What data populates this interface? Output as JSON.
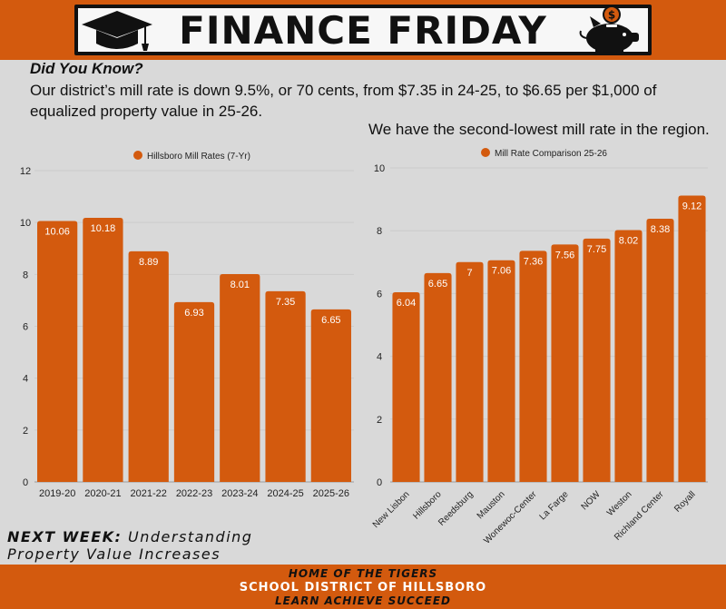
{
  "header": {
    "title": "FINANCE FRIDAY",
    "left_icon": "graduation-cap-icon",
    "right_icon": "piggy-bank-icon",
    "accent_color": "#d35a0e"
  },
  "intro": {
    "heading": "Did You Know?",
    "fact": "Our district’s mill rate is down 9.5%, or 70 cents, from $7.35 in 24-25, to $6.65 per $1,000 of equalized property value in 25-26.",
    "region_note": "We have the second-lowest mill rate in the region."
  },
  "chart_data": [
    {
      "type": "bar",
      "title": "Hillsboro Mill Rates (7-Yr)",
      "legend": "top-center",
      "grid": true,
      "ylim": [
        0,
        12
      ],
      "yticks": [
        0,
        2,
        4,
        6,
        8,
        10,
        12
      ],
      "categories": [
        "2019-20",
        "2020-21",
        "2021-22",
        "2022-23",
        "2023-24",
        "2024-25",
        "2025-26"
      ],
      "series": [
        {
          "name": "Hillsboro Mill Rates (7-Yr)",
          "color": "#d35a0e",
          "values": [
            10.06,
            10.18,
            8.89,
            6.93,
            8.01,
            7.35,
            6.65
          ],
          "labels": [
            "10.06",
            "10.18",
            "8.89",
            "6.93",
            "8.01",
            "7.35",
            "6.65"
          ]
        }
      ]
    },
    {
      "type": "bar",
      "title": "Mill Rate Comparison 25-26",
      "legend": "top-center",
      "grid": true,
      "ylim": [
        0,
        10
      ],
      "yticks": [
        0,
        2,
        4,
        6,
        8,
        10
      ],
      "categories": [
        "New Lisbon",
        "Hillsboro",
        "Reedsburg",
        "Mauston",
        "Wonewoc-Center",
        "La Farge",
        "NOW",
        "Weston",
        "Richland Center",
        "Royall"
      ],
      "series": [
        {
          "name": "Mill Rate Comparison 25-26",
          "color": "#d35a0e",
          "values": [
            6.04,
            6.65,
            7,
            7.06,
            7.36,
            7.56,
            7.75,
            8.02,
            8.38,
            9.12
          ],
          "labels": [
            "6.04",
            "6.65",
            "7",
            "7.06",
            "7.36",
            "7.56",
            "7.75",
            "8.02",
            "8.38",
            "9.12"
          ]
        }
      ]
    }
  ],
  "next_week": {
    "label": "NEXT WEEK:",
    "topic_line1": "Understanding",
    "topic_line2": "Property Value Increases"
  },
  "footer": {
    "line1": "HOME OF THE TIGERS",
    "line2": "SCHOOL DISTRICT OF HILLSBORO",
    "line3": "LEARN ACHIEVE SUCCEED"
  }
}
